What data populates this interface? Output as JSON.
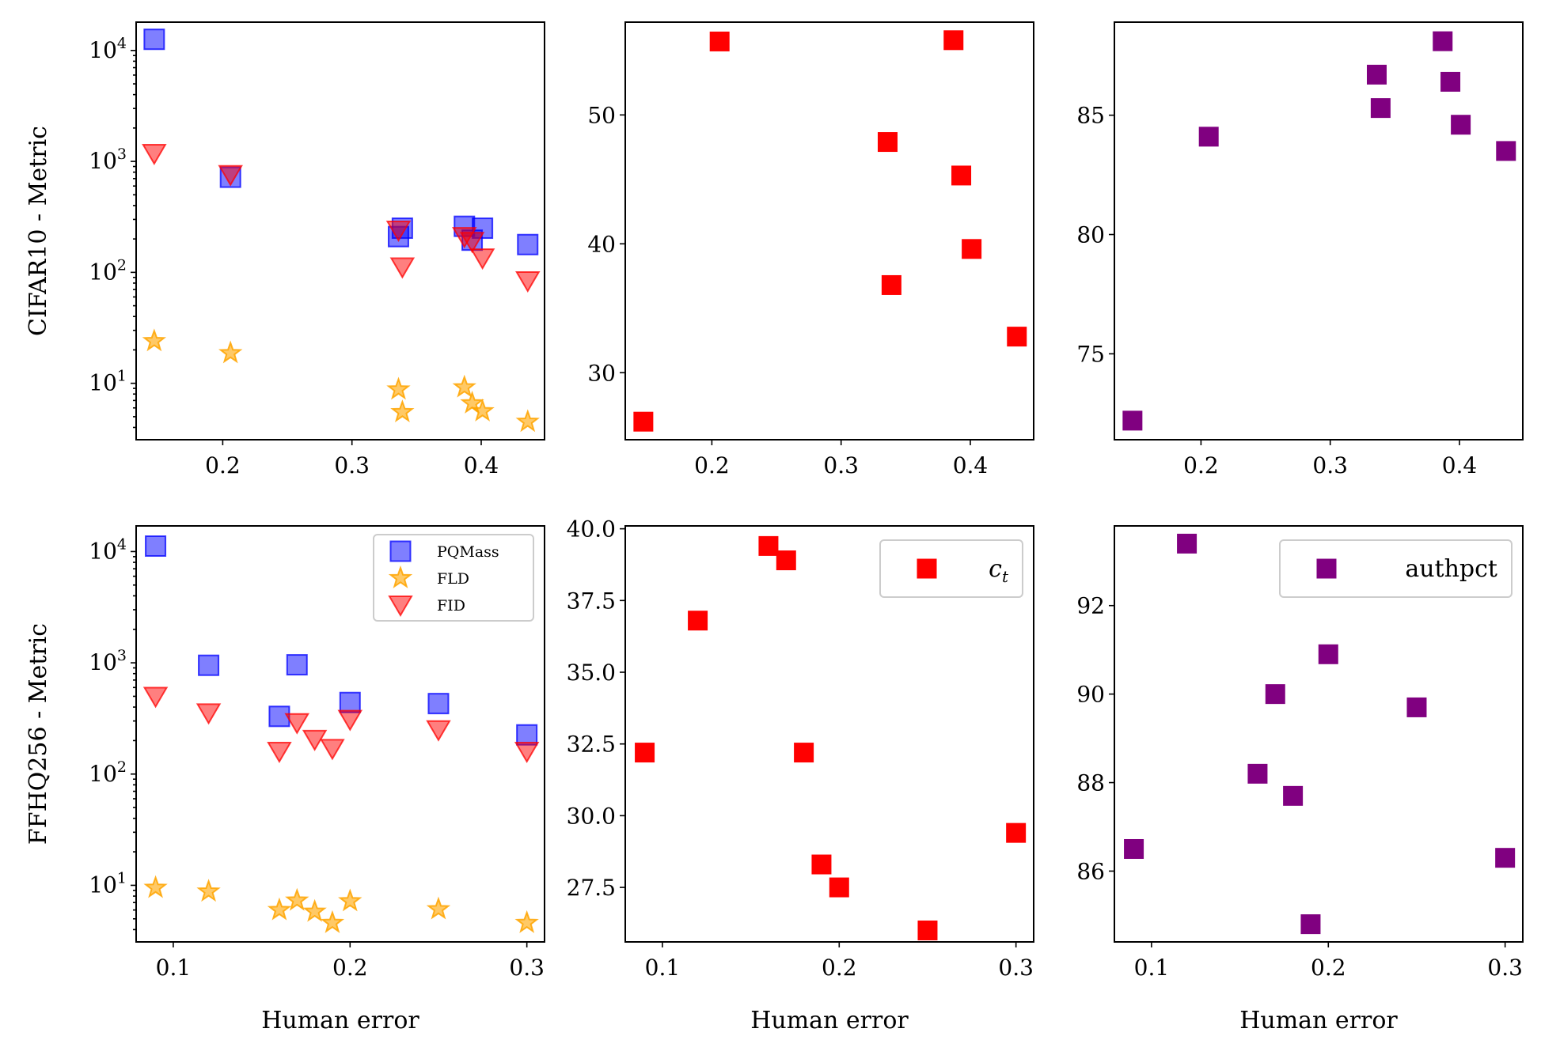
{
  "chart_data": [
    {
      "id": "cifar-metric",
      "type": "scatter",
      "yscale": "log",
      "xlim": [
        0.133,
        0.449
      ],
      "ylim": [
        3.1,
        18000
      ],
      "xticks": [
        0.2,
        0.3,
        0.4
      ],
      "xtick_labels": [
        "0.2",
        "0.3",
        "0.4"
      ],
      "yticks": [
        10,
        100,
        1000,
        10000
      ],
      "ytick_exponents": [
        "1",
        "2",
        "3",
        "4"
      ],
      "ylabel": "CIFAR10 - Metric",
      "xlabel": "",
      "series": [
        {
          "name": "PQMass",
          "marker": "square",
          "color": "#0000ff",
          "alpha": 0.5,
          "x": [
            0.147,
            0.206,
            0.336,
            0.339,
            0.387,
            0.393,
            0.401,
            0.436
          ],
          "y": [
            12600,
            720,
            210,
            250,
            260,
            195,
            250,
            178
          ]
        },
        {
          "name": "FLD",
          "marker": "star",
          "color": "#ffa500",
          "alpha": 0.6,
          "x": [
            0.147,
            0.206,
            0.336,
            0.339,
            0.387,
            0.393,
            0.401,
            0.436
          ],
          "y": [
            24,
            18.7,
            8.8,
            5.5,
            9.2,
            6.6,
            5.6,
            4.5
          ]
        },
        {
          "name": "FID",
          "marker": "triangle_down",
          "color": "#ff0000",
          "alpha": 0.5,
          "x": [
            0.147,
            0.206,
            0.336,
            0.339,
            0.387,
            0.393,
            0.401,
            0.436
          ],
          "y": [
            1180,
            760,
            240,
            112,
            210,
            190,
            135,
            84
          ]
        }
      ]
    },
    {
      "id": "cifar-ct",
      "type": "scatter",
      "xlim": [
        0.133,
        0.449
      ],
      "ylim": [
        24.8,
        57.2
      ],
      "xticks": [
        0.2,
        0.3,
        0.4
      ],
      "xtick_labels": [
        "0.2",
        "0.3",
        "0.4"
      ],
      "yticks": [
        30,
        40,
        50
      ],
      "ytick_labels": [
        "30",
        "40",
        "50"
      ],
      "xlabel": "",
      "series": [
        {
          "name": "c_t",
          "marker": "square",
          "color": "#ff0000",
          "alpha": 1,
          "x": [
            0.147,
            0.206,
            0.336,
            0.339,
            0.387,
            0.393,
            0.401,
            0.436
          ],
          "y": [
            26.2,
            55.7,
            47.9,
            36.8,
            55.8,
            45.3,
            39.6,
            32.8
          ]
        }
      ]
    },
    {
      "id": "cifar-authpct",
      "type": "scatter",
      "xlim": [
        0.133,
        0.449
      ],
      "ylim": [
        71.4,
        88.9
      ],
      "xticks": [
        0.2,
        0.3,
        0.4
      ],
      "xtick_labels": [
        "0.2",
        "0.3",
        "0.4"
      ],
      "yticks": [
        75,
        80,
        85
      ],
      "ytick_labels": [
        "75",
        "80",
        "85"
      ],
      "xlabel": "",
      "series": [
        {
          "name": "authpct",
          "marker": "square",
          "color": "#800080",
          "alpha": 1,
          "x": [
            0.147,
            0.206,
            0.336,
            0.339,
            0.387,
            0.393,
            0.401,
            0.436
          ],
          "y": [
            72.2,
            84.1,
            86.7,
            85.3,
            88.1,
            86.4,
            84.6,
            83.5
          ]
        }
      ]
    },
    {
      "id": "ffhq-metric",
      "type": "scatter",
      "yscale": "log",
      "xlim": [
        0.079,
        0.31
      ],
      "ylim": [
        3.1,
        17000
      ],
      "xticks": [
        0.1,
        0.2,
        0.3
      ],
      "xtick_labels": [
        "0.1",
        "0.2",
        "0.3"
      ],
      "yticks": [
        10,
        100,
        1000,
        10000
      ],
      "ytick_exponents": [
        "1",
        "2",
        "3",
        "4"
      ],
      "ylabel": "FFHQ256 - Metric",
      "xlabel": "Human error",
      "legend": {
        "position": "upper right",
        "entries": [
          "PQMass",
          "FLD",
          "FID"
        ]
      },
      "series": [
        {
          "name": "PQMass",
          "marker": "square",
          "color": "#0000ff",
          "alpha": 0.5,
          "x": [
            0.09,
            0.12,
            0.16,
            0.17,
            0.2,
            0.25,
            0.3
          ],
          "y": [
            11200,
            950,
            330,
            960,
            440,
            430,
            225
          ]
        },
        {
          "name": "FLD",
          "marker": "star",
          "color": "#ffa500",
          "alpha": 0.6,
          "x": [
            0.09,
            0.12,
            0.16,
            0.17,
            0.18,
            0.19,
            0.2,
            0.25,
            0.3
          ],
          "y": [
            9.5,
            8.8,
            6.0,
            7.3,
            5.8,
            4.6,
            7.2,
            6.1,
            4.6
          ]
        },
        {
          "name": "FID",
          "marker": "triangle_down",
          "color": "#ff0000",
          "alpha": 0.5,
          "x": [
            0.09,
            0.12,
            0.16,
            0.17,
            0.18,
            0.19,
            0.2,
            0.25,
            0.3
          ],
          "y": [
            500,
            355,
            160,
            290,
            205,
            170,
            310,
            250,
            160
          ]
        }
      ]
    },
    {
      "id": "ffhq-ct",
      "type": "scatter",
      "xlim": [
        0.079,
        0.31
      ],
      "ylim": [
        25.6,
        40.1
      ],
      "xticks": [
        0.1,
        0.2,
        0.3
      ],
      "xtick_labels": [
        "0.1",
        "0.2",
        "0.3"
      ],
      "yticks": [
        27.5,
        30.0,
        32.5,
        35.0,
        37.5,
        40.0
      ],
      "ytick_labels": [
        "27.5",
        "30.0",
        "32.5",
        "35.0",
        "37.5",
        "40.0"
      ],
      "xlabel": "Human error",
      "legend": {
        "position": "upper right",
        "entries": [
          "c_t"
        ],
        "label_base": "c",
        "label_sub": "t"
      },
      "series": [
        {
          "name": "c_t",
          "marker": "square",
          "color": "#ff0000",
          "alpha": 1,
          "x": [
            0.09,
            0.12,
            0.16,
            0.17,
            0.18,
            0.19,
            0.2,
            0.25,
            0.3
          ],
          "y": [
            32.2,
            36.8,
            39.4,
            38.9,
            32.2,
            28.3,
            27.5,
            26.0,
            29.4
          ]
        }
      ]
    },
    {
      "id": "ffhq-authpct",
      "type": "scatter",
      "xlim": [
        0.079,
        0.31
      ],
      "ylim": [
        84.4,
        93.8
      ],
      "xticks": [
        0.1,
        0.2,
        0.3
      ],
      "xtick_labels": [
        "0.1",
        "0.2",
        "0.3"
      ],
      "yticks": [
        86,
        88,
        90,
        92
      ],
      "ytick_labels": [
        "86",
        "88",
        "90",
        "92"
      ],
      "xlabel": "Human error",
      "legend": {
        "position": "upper right",
        "entries": [
          "authpct"
        ]
      },
      "series": [
        {
          "name": "authpct",
          "marker": "square",
          "color": "#800080",
          "alpha": 1,
          "x": [
            0.09,
            0.12,
            0.16,
            0.17,
            0.18,
            0.19,
            0.2,
            0.25,
            0.3
          ],
          "y": [
            86.5,
            93.4,
            88.2,
            90.0,
            87.7,
            84.8,
            90.9,
            89.7,
            86.3
          ]
        }
      ]
    }
  ]
}
